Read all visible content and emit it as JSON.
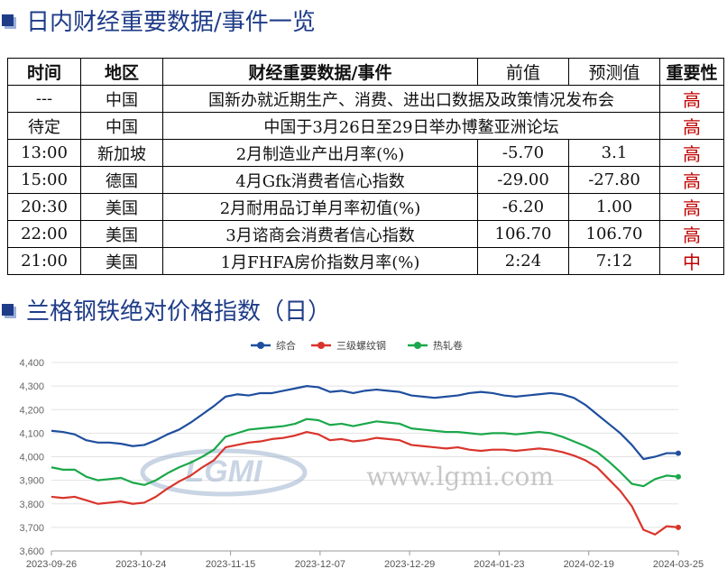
{
  "section1_title": "日内财经重要数据/事件一览",
  "section2_title": "兰格钢铁绝对价格指数（日）",
  "table": {
    "headers": [
      "时间",
      "地区",
      "财经重要数据/事件",
      "前值",
      "预测值",
      "重要性"
    ],
    "rows": [
      {
        "time": "---",
        "region": "中国",
        "event": "国新办就近期生产、消费、进出口数据及政策情况发布会",
        "prev": "",
        "forecast": "",
        "importance": "高"
      },
      {
        "time": "待定",
        "region": "中国",
        "event": "中国于3月26日至29日举办博鳌亚洲论坛",
        "prev": "",
        "forecast": "",
        "importance": "高"
      },
      {
        "time": "13:00",
        "region": "新加坡",
        "event": "2月制造业产出月率(%)",
        "prev": "-5.70",
        "forecast": "3.1",
        "importance": "高"
      },
      {
        "time": "15:00",
        "region": "德国",
        "event": "4月Gfk消费者信心指数",
        "prev": "-29.00",
        "forecast": "-27.80",
        "importance": "高"
      },
      {
        "time": "20:30",
        "region": "美国",
        "event": "2月耐用品订单月率初值(%)",
        "prev": "-6.20",
        "forecast": "1.00",
        "importance": "高"
      },
      {
        "time": "22:00",
        "region": "美国",
        "event": "3月谘商会消费者信心指数",
        "prev": "106.70",
        "forecast": "106.70",
        "importance": "高"
      },
      {
        "time": "21:00",
        "region": "美国",
        "event": "1月FHFA房价指数月率(%)",
        "prev": "2:24",
        "forecast": "7:12",
        "importance": "中"
      }
    ]
  },
  "chart_data": {
    "type": "line",
    "legend_position": "top-center",
    "grid": true,
    "watermark": "www.lgmi.com",
    "logo_text": "LGMI",
    "x_ticks": [
      "2023-09-26",
      "2023-10-24",
      "2023-11-15",
      "2023-12-07",
      "2023-12-29",
      "2024-01-23",
      "2024-02-19",
      "2024-03-25"
    ],
    "ylim": [
      3600,
      4400
    ],
    "y_ticks": [
      "3,600",
      "3,700",
      "3,800",
      "3,900",
      "4,000",
      "4,100",
      "4,200",
      "4,300",
      "4,400"
    ],
    "series": [
      {
        "name": "综合",
        "color": "#1f4e9e",
        "values": [
          4110,
          4105,
          4095,
          4070,
          4060,
          4060,
          4055,
          4045,
          4050,
          4070,
          4095,
          4115,
          4145,
          4180,
          4215,
          4255,
          4265,
          4260,
          4270,
          4270,
          4280,
          4290,
          4300,
          4295,
          4275,
          4280,
          4270,
          4280,
          4285,
          4280,
          4275,
          4260,
          4255,
          4250,
          4255,
          4260,
          4270,
          4275,
          4270,
          4260,
          4255,
          4260,
          4265,
          4270,
          4265,
          4250,
          4220,
          4180,
          4140,
          4100,
          4050,
          3990,
          4000,
          4015,
          4015
        ]
      },
      {
        "name": "三级螺纹钢",
        "color": "#d9342b",
        "values": [
          3830,
          3825,
          3830,
          3815,
          3800,
          3805,
          3810,
          3800,
          3805,
          3830,
          3865,
          3895,
          3920,
          3955,
          3985,
          4040,
          4050,
          4060,
          4065,
          4075,
          4080,
          4090,
          4105,
          4095,
          4070,
          4075,
          4065,
          4070,
          4080,
          4075,
          4070,
          4050,
          4045,
          4040,
          4035,
          4040,
          4030,
          4025,
          4030,
          4030,
          4025,
          4030,
          4035,
          4030,
          4020,
          4005,
          3985,
          3955,
          3905,
          3855,
          3790,
          3690,
          3670,
          3705,
          3700
        ]
      },
      {
        "name": "热轧卷",
        "color": "#1aa84a",
        "values": [
          3955,
          3945,
          3945,
          3915,
          3900,
          3905,
          3910,
          3890,
          3880,
          3900,
          3930,
          3955,
          3975,
          4000,
          4030,
          4085,
          4100,
          4115,
          4120,
          4125,
          4130,
          4140,
          4160,
          4155,
          4135,
          4140,
          4130,
          4140,
          4150,
          4145,
          4140,
          4120,
          4115,
          4110,
          4105,
          4105,
          4100,
          4095,
          4100,
          4100,
          4095,
          4100,
          4105,
          4100,
          4085,
          4065,
          4045,
          4020,
          3980,
          3935,
          3885,
          3875,
          3905,
          3920,
          3915
        ]
      }
    ]
  }
}
